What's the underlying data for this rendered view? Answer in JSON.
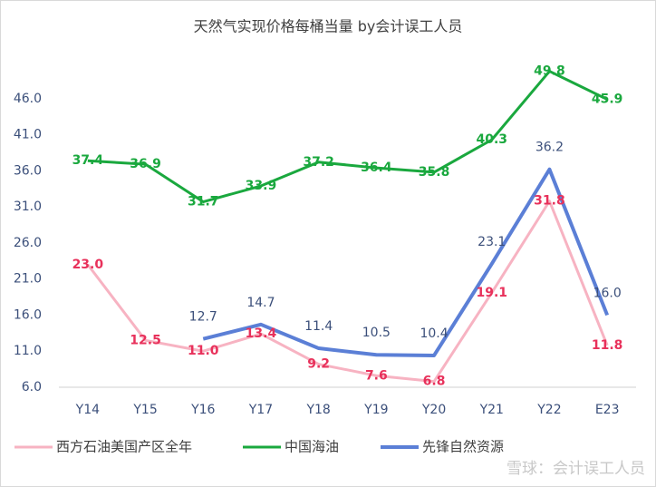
{
  "chart_data": {
    "type": "line",
    "title": "天然气实现价格每桶当量 by会计误工人员",
    "categories": [
      "Y14",
      "Y15",
      "Y16",
      "Y17",
      "Y18",
      "Y19",
      "Y20",
      "Y21",
      "Y22",
      "E23"
    ],
    "series": [
      {
        "name": "西方石油美国产区全年",
        "color": "#f7b3c2",
        "label_color": "#e8315b",
        "values": [
          23.0,
          12.5,
          11.0,
          13.4,
          9.2,
          7.6,
          6.8,
          19.1,
          31.8,
          11.8
        ],
        "value_labels": [
          "23.0",
          "12.5",
          "11.0",
          "13.4",
          "9.2",
          "7.6",
          "6.8",
          "19.1",
          "31.8",
          "11.8"
        ]
      },
      {
        "name": "中国海油",
        "color": "#1aa83e",
        "label_color": "#1aa83e",
        "values": [
          37.4,
          36.9,
          31.7,
          33.9,
          37.2,
          36.4,
          35.8,
          40.3,
          49.8,
          45.9
        ],
        "value_labels": [
          "37.4",
          "36.9",
          "31.7",
          "33.9",
          "37.2",
          "36.4",
          "35.8",
          "40.3",
          "49.8",
          "45.9"
        ]
      },
      {
        "name": "先锋自然资源",
        "color": "#5b7fd6",
        "label_color": "#3b4f7a",
        "values": [
          null,
          null,
          12.7,
          14.7,
          11.4,
          10.5,
          10.4,
          23.1,
          36.2,
          16.0
        ],
        "value_labels": [
          null,
          null,
          "12.7",
          "14.7",
          "11.4",
          "10.5",
          "10.4",
          "23.1",
          "36.2",
          "16.0"
        ]
      }
    ],
    "ylim": [
      6,
      51
    ],
    "yticks": [
      {
        "value": 6,
        "label": "6.0"
      },
      {
        "value": 11,
        "label": "11.0"
      },
      {
        "value": 16,
        "label": "16.0"
      },
      {
        "value": 21,
        "label": "21.0"
      },
      {
        "value": 26,
        "label": "26.0"
      },
      {
        "value": 31,
        "label": "31.0"
      },
      {
        "value": 36,
        "label": "36.0"
      },
      {
        "value": 41,
        "label": "41.0"
      },
      {
        "value": 46,
        "label": "46.0"
      }
    ],
    "grid": false,
    "legend": "bottom",
    "watermark": "雪球：会计误工人员"
  }
}
